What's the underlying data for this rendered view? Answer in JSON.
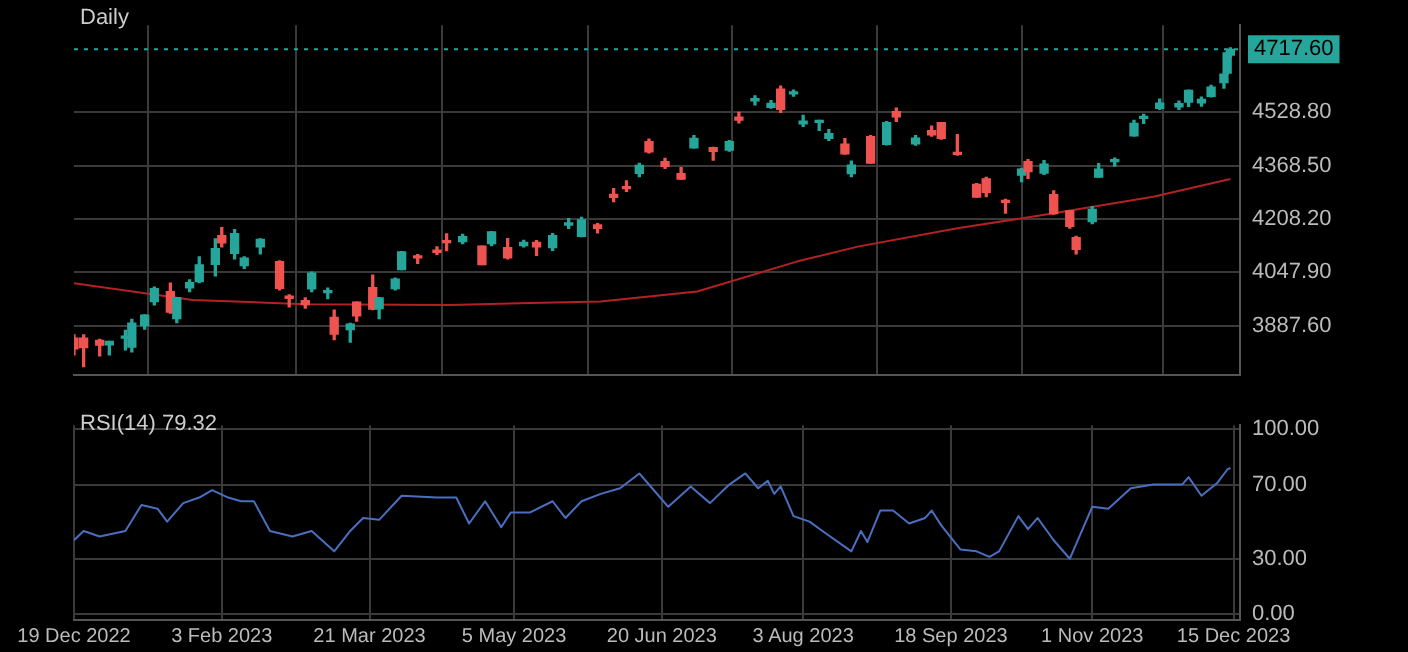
{
  "chart_data": [
    {
      "type": "candlestick",
      "title": "Daily",
      "x": [
        "2022-12-19",
        "2022-12-22",
        "2022-12-27",
        "2022-12-30",
        "2023-01-04",
        "2023-01-06",
        "2023-01-10",
        "2023-01-13",
        "2023-01-18",
        "2023-01-20",
        "2023-01-24",
        "2023-01-27",
        "2023-02-01",
        "2023-02-03",
        "2023-02-07",
        "2023-02-10",
        "2023-02-15",
        "2023-02-21",
        "2023-02-24",
        "2023-03-01",
        "2023-03-03",
        "2023-03-08",
        "2023-03-10",
        "2023-03-15",
        "2023-03-17",
        "2023-03-22",
        "2023-03-24",
        "2023-03-29",
        "2023-03-31",
        "2023-04-05",
        "2023-04-11",
        "2023-04-14",
        "2023-04-19",
        "2023-04-25",
        "2023-04-28",
        "2023-05-03",
        "2023-05-08",
        "2023-05-12",
        "2023-05-17",
        "2023-05-22",
        "2023-05-26",
        "2023-05-31",
        "2023-06-05",
        "2023-06-09",
        "2023-06-13",
        "2023-06-16",
        "2023-06-21",
        "2023-06-26",
        "2023-06-30",
        "2023-07-06",
        "2023-07-11",
        "2023-07-14",
        "2023-07-19",
        "2023-07-24",
        "2023-07-27",
        "2023-07-31",
        "2023-08-03",
        "2023-08-08",
        "2023-08-11",
        "2023-08-16",
        "2023-08-18",
        "2023-08-24",
        "2023-08-29",
        "2023-09-01",
        "2023-09-07",
        "2023-09-12",
        "2023-09-15",
        "2023-09-20",
        "2023-09-26",
        "2023-09-29",
        "2023-10-05",
        "2023-10-10",
        "2023-10-12",
        "2023-10-17",
        "2023-10-20",
        "2023-10-25",
        "2023-10-27",
        "2023-11-01",
        "2023-11-03",
        "2023-11-08",
        "2023-11-14",
        "2023-11-17",
        "2023-11-22",
        "2023-11-28",
        "2023-12-01",
        "2023-12-05",
        "2023-12-08",
        "2023-12-12",
        "2023-12-13",
        "2023-12-14"
      ],
      "ohlc": [
        [
          3850,
          3860,
          3800,
          3818
        ],
        [
          3850,
          3860,
          3765,
          3822
        ],
        [
          3843,
          3846,
          3797,
          3829
        ],
        [
          3830,
          3840,
          3800,
          3840
        ],
        [
          3850,
          3873,
          3815,
          3853
        ],
        [
          3823,
          3906,
          3809,
          3895
        ],
        [
          3888,
          3920,
          3877,
          3919
        ],
        [
          3960,
          4003,
          3950,
          3999
        ],
        [
          3990,
          4015,
          3925,
          3928
        ],
        [
          3909,
          3972,
          3897,
          3972
        ],
        [
          4001,
          4025,
          3990,
          4017
        ],
        [
          4020,
          4094,
          4017,
          4070
        ],
        [
          4072,
          4148,
          4037,
          4119
        ],
        [
          4158,
          4182,
          4124,
          4136
        ],
        [
          4105,
          4176,
          4088,
          4164
        ],
        [
          4068,
          4094,
          4060,
          4090
        ],
        [
          4124,
          4148,
          4103,
          4147
        ],
        [
          4080,
          4082,
          3995,
          4000
        ],
        [
          3974,
          3980,
          3944,
          3970
        ],
        [
          3963,
          3971,
          3940,
          3951
        ],
        [
          3998,
          4048,
          3990,
          4045
        ],
        [
          3987,
          4000,
          3969,
          3992
        ],
        [
          3912,
          3934,
          3846,
          3862
        ],
        [
          3876,
          3894,
          3838,
          3892
        ],
        [
          3958,
          3958,
          3901,
          3917
        ],
        [
          4002,
          4039,
          3936,
          3937
        ],
        [
          3939,
          3972,
          3909,
          3971
        ],
        [
          3999,
          4030,
          3995,
          4027
        ],
        [
          4056,
          4110,
          4056,
          4109
        ],
        [
          4094,
          4101,
          4075,
          4091
        ],
        [
          4110,
          4124,
          4102,
          4108
        ],
        [
          4140,
          4163,
          4113,
          4137
        ],
        [
          4140,
          4162,
          4134,
          4155
        ],
        [
          4126,
          4126,
          4071,
          4071
        ],
        [
          4134,
          4170,
          4128,
          4169
        ],
        [
          4122,
          4149,
          4088,
          4091
        ],
        [
          4128,
          4144,
          4124,
          4138
        ],
        [
          4138,
          4143,
          4099,
          4124
        ],
        [
          4122,
          4164,
          4114,
          4158
        ],
        [
          4190,
          4209,
          4180,
          4192
        ],
        [
          4156,
          4213,
          4155,
          4205
        ],
        [
          4190,
          4194,
          4166,
          4180
        ],
        [
          4282,
          4299,
          4260,
          4273
        ],
        [
          4304,
          4322,
          4291,
          4299
        ],
        [
          4345,
          4375,
          4335,
          4369
        ],
        [
          4440,
          4448,
          4407,
          4410
        ],
        [
          4380,
          4390,
          4360,
          4366
        ],
        [
          4344,
          4362,
          4328,
          4328
        ],
        [
          4422,
          4458,
          4422,
          4450
        ],
        [
          4422,
          4423,
          4385,
          4411
        ],
        [
          4415,
          4443,
          4412,
          4440
        ],
        [
          4514,
          4528,
          4497,
          4505
        ],
        [
          4563,
          4578,
          4551,
          4565
        ],
        [
          4543,
          4563,
          4541,
          4555
        ],
        [
          4598,
          4607,
          4528,
          4537
        ],
        [
          4584,
          4595,
          4577,
          4589
        ],
        [
          4494,
          4519,
          4486,
          4502
        ],
        [
          4498,
          4504,
          4474,
          4499
        ],
        [
          4450,
          4476,
          4444,
          4464
        ],
        [
          4433,
          4449,
          4403,
          4404
        ],
        [
          4344,
          4382,
          4335,
          4370
        ],
        [
          4455,
          4458,
          4376,
          4376
        ],
        [
          4432,
          4500,
          4431,
          4497
        ],
        [
          4530,
          4541,
          4501,
          4515
        ],
        [
          4434,
          4458,
          4430,
          4451
        ],
        [
          4473,
          4487,
          4457,
          4461
        ],
        [
          4497,
          4497,
          4448,
          4450
        ],
        [
          4403,
          4461,
          4400,
          4402
        ],
        [
          4312,
          4314,
          4274,
          4274
        ],
        [
          4328,
          4333,
          4275,
          4288
        ],
        [
          4260,
          4267,
          4226,
          4258
        ],
        [
          4340,
          4360,
          4320,
          4358
        ],
        [
          4380,
          4386,
          4330,
          4350
        ],
        [
          4346,
          4383,
          4342,
          4373
        ],
        [
          4281,
          4292,
          4223,
          4224
        ],
        [
          4232,
          4233,
          4181,
          4186
        ],
        [
          4152,
          4156,
          4103,
          4117
        ],
        [
          4200,
          4245,
          4194,
          4237
        ],
        [
          4334,
          4374,
          4334,
          4358
        ],
        [
          4380,
          4391,
          4367,
          4383
        ],
        [
          4458,
          4504,
          4458,
          4495
        ],
        [
          4510,
          4522,
          4495,
          4514
        ],
        [
          4540,
          4568,
          4537,
          4556
        ],
        [
          4545,
          4562,
          4537,
          4554
        ],
        [
          4559,
          4595,
          4546,
          4594
        ],
        [
          4557,
          4574,
          4547,
          4567
        ],
        [
          4576,
          4609,
          4575,
          4604
        ],
        [
          4618,
          4643,
          4601,
          4643
        ],
        [
          4646,
          4709,
          4643,
          4707
        ],
        [
          4700,
          4722,
          4695,
          4717.6
        ]
      ],
      "colors": [
        "#ef5350",
        "#ef5350",
        "#ef5350",
        "#26a69a",
        "#26a69a",
        "#26a69a",
        "#26a69a",
        "#26a69a",
        "#ef5350",
        "#26a69a",
        "#26a69a",
        "#26a69a",
        "#26a69a",
        "#ef5350",
        "#26a69a",
        "#26a69a",
        "#26a69a",
        "#ef5350",
        "#ef5350",
        "#ef5350",
        "#26a69a",
        "#26a69a",
        "#ef5350",
        "#26a69a",
        "#ef5350",
        "#ef5350",
        "#26a69a",
        "#26a69a",
        "#26a69a",
        "#ef5350",
        "#ef5350",
        "#ef5350",
        "#26a69a",
        "#ef5350",
        "#26a69a",
        "#ef5350",
        "#26a69a",
        "#ef5350",
        "#26a69a",
        "#26a69a",
        "#26a69a",
        "#ef5350",
        "#ef5350",
        "#ef5350",
        "#26a69a",
        "#ef5350",
        "#ef5350",
        "#ef5350",
        "#26a69a",
        "#ef5350",
        "#26a69a",
        "#ef5350",
        "#26a69a",
        "#26a69a",
        "#ef5350",
        "#26a69a",
        "#26a69a",
        "#26a69a",
        "#26a69a",
        "#ef5350",
        "#26a69a",
        "#ef5350",
        "#26a69a",
        "#ef5350",
        "#26a69a",
        "#ef5350",
        "#ef5350",
        "#ef5350",
        "#ef5350",
        "#ef5350",
        "#ef5350",
        "#26a69a",
        "#ef5350",
        "#26a69a",
        "#ef5350",
        "#ef5350",
        "#ef5350",
        "#26a69a",
        "#26a69a",
        "#26a69a",
        "#26a69a",
        "#26a69a",
        "#26a69a",
        "#26a69a",
        "#26a69a",
        "#26a69a",
        "#26a69a",
        "#26a69a",
        "#26a69a",
        "#26a69a"
      ],
      "series": [
        {
          "type": "line",
          "color": "#b22222",
          "x": [
            "2022-12-19",
            "2023-01-25",
            "2023-03-01",
            "2023-04-15",
            "2023-06-01",
            "2023-07-01",
            "2023-08-01",
            "2023-08-20",
            "2023-09-20",
            "2023-10-20",
            "2023-11-20",
            "2023-12-14"
          ],
          "values": [
            4015,
            3965,
            3952,
            3950,
            3960,
            3990,
            4080,
            4125,
            4180,
            4225,
            4275,
            4328
          ]
        }
      ],
      "xlim": [
        "2022-12-19",
        "2023-12-17"
      ],
      "xticks": [
        {
          "value": "2022-12-19",
          "label": null
        },
        {
          "value": "2023-02-03",
          "label": null
        },
        {
          "value": "2023-03-21",
          "label": null
        },
        {
          "value": "2023-05-05",
          "label": null
        },
        {
          "value": "2023-06-20",
          "label": null
        },
        {
          "value": "2023-08-03",
          "label": null
        },
        {
          "value": "2023-09-18",
          "label": null
        },
        {
          "value": "2023-11-01",
          "label": null
        },
        {
          "value": "2023-12-15",
          "label": null
        }
      ],
      "ylim": [
        3740,
        4790
      ],
      "yticks": [
        {
          "value": 3887.6,
          "label": "3887.60"
        },
        {
          "value": 4047.9,
          "label": "4047.90"
        },
        {
          "value": 4208.2,
          "label": "4208.20"
        },
        {
          "value": 4368.5,
          "label": "4368.50"
        },
        {
          "value": 4528.8,
          "label": "4528.80"
        }
      ],
      "ref_lines": [
        {
          "axis": "y",
          "value": 4717.6,
          "label": "4717.60",
          "color": "#26a69a",
          "line_style": "dotted"
        }
      ],
      "grid": true,
      "legend": false,
      "tick_labels": "y"
    },
    {
      "type": "line",
      "title": "RSI(14) 79.32",
      "series": [
        {
          "color": "#4a6fc0",
          "x": [
            "2022-12-19",
            "2022-12-22",
            "2022-12-27",
            "2023-01-04",
            "2023-01-09",
            "2023-01-14",
            "2023-01-17",
            "2023-01-22",
            "2023-01-27",
            "2023-01-31",
            "2023-02-05",
            "2023-02-09",
            "2023-02-13",
            "2023-02-18",
            "2023-02-25",
            "2023-03-03",
            "2023-03-10",
            "2023-03-15",
            "2023-03-19",
            "2023-03-24",
            "2023-03-31",
            "2023-04-11",
            "2023-04-17",
            "2023-04-21",
            "2023-04-26",
            "2023-05-01",
            "2023-05-04",
            "2023-05-10",
            "2023-05-17",
            "2023-05-21",
            "2023-05-26",
            "2023-06-01",
            "2023-06-07",
            "2023-06-13",
            "2023-06-17",
            "2023-06-22",
            "2023-06-29",
            "2023-07-05",
            "2023-07-11",
            "2023-07-16",
            "2023-07-20",
            "2023-07-23",
            "2023-07-25",
            "2023-07-27",
            "2023-07-31",
            "2023-08-05",
            "2023-08-09",
            "2023-08-18",
            "2023-08-21",
            "2023-08-23",
            "2023-08-27",
            "2023-08-31",
            "2023-09-05",
            "2023-09-10",
            "2023-09-12",
            "2023-09-15",
            "2023-09-21",
            "2023-09-26",
            "2023-09-30",
            "2023-10-03",
            "2023-10-09",
            "2023-10-12",
            "2023-10-15",
            "2023-10-20",
            "2023-10-25",
            "2023-11-01",
            "2023-11-06",
            "2023-11-13",
            "2023-11-20",
            "2023-11-29",
            "2023-12-01",
            "2023-12-05",
            "2023-12-10",
            "2023-12-13",
            "2023-12-14"
          ],
          "values": [
            40,
            45,
            42,
            45,
            59,
            57,
            50,
            60,
            63,
            67,
            63,
            61,
            61,
            45,
            42,
            45,
            34,
            45,
            52,
            51,
            64,
            63,
            63,
            49,
            61,
            47,
            55,
            55,
            61,
            52,
            61,
            65,
            68,
            76,
            68,
            58,
            69,
            60,
            70,
            76,
            68,
            72,
            65,
            69,
            53,
            50,
            45,
            34,
            45,
            39,
            56,
            56,
            49,
            52,
            56,
            48,
            35,
            34,
            31,
            34,
            53,
            46,
            52,
            40,
            30,
            58,
            57,
            68,
            70,
            70,
            74,
            64,
            71,
            78,
            79
          ]
        }
      ],
      "xlim": [
        "2022-12-19",
        "2023-12-17"
      ],
      "xticks": [
        {
          "value": "2022-12-19",
          "label": "19 Dec 2022"
        },
        {
          "value": "2023-02-03",
          "label": "3 Feb 2023"
        },
        {
          "value": "2023-03-21",
          "label": "21 Mar 2023"
        },
        {
          "value": "2023-05-05",
          "label": "5 May 2023"
        },
        {
          "value": "2023-06-20",
          "label": "20 Jun 2023"
        },
        {
          "value": "2023-08-03",
          "label": "3 Aug 2023"
        },
        {
          "value": "2023-09-18",
          "label": "18 Sep 2023"
        },
        {
          "value": "2023-11-01",
          "label": "1 Nov 2023"
        },
        {
          "value": "2023-12-15",
          "label": "15 Dec 2023"
        }
      ],
      "ylim": [
        -3,
        102
      ],
      "yticks": [
        {
          "value": 0,
          "label": "0.00"
        },
        {
          "value": 30,
          "label": "30.00"
        },
        {
          "value": 70,
          "label": "70.00"
        },
        {
          "value": 100,
          "label": "100.00"
        }
      ],
      "grid": true,
      "legend": false
    }
  ]
}
